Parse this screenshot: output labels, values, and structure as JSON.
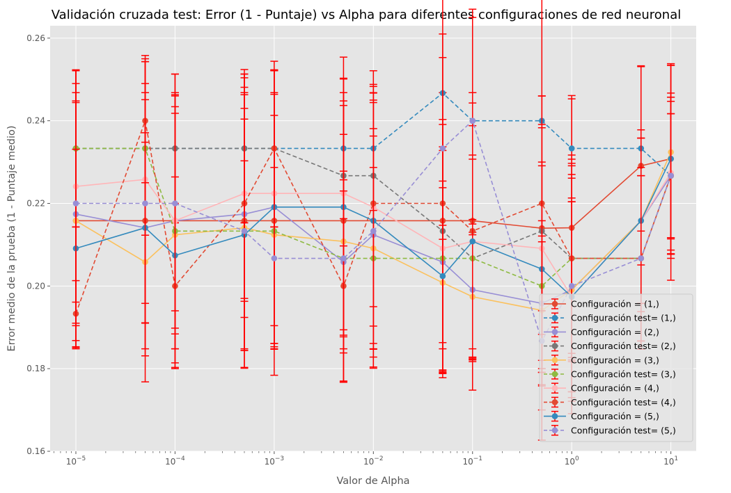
{
  "chart_data": {
    "type": "line",
    "title": "Validación cruzada test: Error (1 - Puntaje) vs Alpha para diferentes configuraciones de red neuronal",
    "xlabel": "Valor de Alpha",
    "ylabel": "Error medio de la prueba (1 - Puntaje medio)",
    "xscale": "log",
    "xlim": [
      5.5e-06,
      18
    ],
    "ylim": [
      0.16,
      0.263
    ],
    "x_ticks": [
      {
        "base": "10",
        "exp": "−5",
        "value": 1e-05
      },
      {
        "base": "10",
        "exp": "−4",
        "value": 0.0001
      },
      {
        "base": "10",
        "exp": "−3",
        "value": 0.001
      },
      {
        "base": "10",
        "exp": "−2",
        "value": 0.01
      },
      {
        "base": "10",
        "exp": "−1",
        "value": 0.1
      },
      {
        "base": "10",
        "exp": "0",
        "value": 1
      },
      {
        "base": "10",
        "exp": "1",
        "value": 10
      }
    ],
    "y_ticks": [
      "0.16",
      "0.18",
      "0.20",
      "0.22",
      "0.24",
      "0.26"
    ],
    "grid": true,
    "legend_position": "lower-right",
    "error_bar_color": "#ff0000",
    "x": [
      1e-05,
      5e-05,
      0.0001,
      0.0005,
      0.001,
      0.005,
      0.01,
      0.05,
      0.1,
      0.5,
      1,
      5,
      10
    ],
    "series": [
      {
        "name": "Configuración = (1,)",
        "color": "#e24a33",
        "dashed": false,
        "values": [
          0.2158,
          0.2158,
          0.2158,
          0.2158,
          0.2158,
          0.2158,
          0.2158,
          0.2158,
          0.2158,
          0.214,
          0.2141,
          0.2291,
          0.2308
        ],
        "errors": [
          0.031,
          0.031,
          0.031,
          0.031,
          0.031,
          0.031,
          0.031,
          0.031,
          0.031,
          0.032,
          0.032,
          0.024,
          0.023
        ]
      },
      {
        "name": "Configuración test= (1,)",
        "color": "#348abd",
        "dashed": true,
        "values": [
          0.2333,
          0.2333,
          0.2333,
          0.2333,
          0.2333,
          0.2333,
          0.2333,
          0.2467,
          0.24,
          0.24,
          0.2333,
          0.2333,
          0.2267
        ],
        "errors": [
          0.019,
          0.021,
          0.018,
          0.018,
          0.019,
          0.017,
          0.015,
          0.032,
          0.027,
          0.06,
          0.012,
          0.02,
          0.019
        ]
      },
      {
        "name": "Configuración = (2,)",
        "color": "#988ed5",
        "dashed": false,
        "values": [
          0.2174,
          0.2141,
          0.2158,
          0.2174,
          0.2191,
          0.2058,
          0.2124,
          0.2058,
          0.1991,
          0.1958,
          0.1991,
          0.2158,
          0.2267
        ],
        "errors": [
          0.027,
          0.031,
          0.031,
          0.033,
          0.033,
          0.022,
          0.032,
          0.027,
          0.017,
          0.02,
          0.03,
          0.022,
          0.019
        ]
      },
      {
        "name": "Configuración test= (2,)",
        "color": "#777777",
        "dashed": true,
        "values": [
          0.2333,
          0.2333,
          0.2333,
          0.2333,
          0.2333,
          0.2267,
          0.2267,
          0.2133,
          0.2067,
          0.2133,
          0.2067,
          0.2067,
          0.2267
        ],
        "errors": [
          0.019,
          0.021,
          0.018,
          0.018,
          0.019,
          0.017,
          0.02,
          0.027,
          0.024,
          0.025,
          0.023,
          0.02,
          0.015
        ]
      },
      {
        "name": "Configuración = (3,)",
        "color": "#fbc15e",
        "dashed": false,
        "values": [
          0.2158,
          0.2058,
          0.2124,
          0.2141,
          0.2124,
          0.2108,
          0.2091,
          0.2008,
          0.1974,
          0.1941,
          0.1991,
          0.2158,
          0.2324
        ],
        "errors": [
          0.029,
          0.029,
          0.031,
          0.034,
          0.034,
          0.034,
          0.029,
          0.023,
          0.015,
          0.018,
          0.027,
          0.02,
          0.021
        ]
      },
      {
        "name": "Configuración test= (3,)",
        "color": "#8eba42",
        "dashed": true,
        "values": [
          0.2333,
          0.2333,
          0.2133,
          0.2133,
          0.2133,
          0.2067,
          0.2067,
          0.2067,
          0.2067,
          0.2,
          0.2067,
          0.2067,
          0.2267
        ],
        "errors": [
          0.019,
          0.021,
          0.033,
          0.033,
          0.028,
          0.03,
          0.022,
          0.027,
          0.025,
          0.03,
          0.025,
          0.022,
          0.015
        ]
      },
      {
        "name": "Configuración = (4,)",
        "color": "#ffb5b8",
        "dashed": false,
        "values": [
          0.2241,
          0.2258,
          0.2158,
          0.2224,
          0.2224,
          0.2224,
          0.2191,
          0.2091,
          0.2108,
          0.2091,
          0.1974,
          0.2158,
          0.2274
        ],
        "errors": [
          0.028,
          0.03,
          0.026,
          0.03,
          0.032,
          0.033,
          0.033,
          0.03,
          0.036,
          0.03,
          0.023,
          0.02,
          0.026
        ]
      },
      {
        "name": "Configuración test= (4,)",
        "color": "#e24a33",
        "dashed": true,
        "values": [
          0.1933,
          0.24,
          0.2,
          0.22,
          0.2333,
          0.2,
          0.22,
          0.22,
          0.2133,
          0.22,
          0.2067,
          0.2067,
          0.2267
        ],
        "errors": [
          0.008,
          0.015,
          0.02,
          0.023,
          0.019,
          0.023,
          0.025,
          0.041,
          0.031,
          0.026,
          0.024,
          0.02,
          0.018
        ]
      },
      {
        "name": "Configuración = (5,)",
        "color": "#348abd",
        "dashed": false,
        "values": [
          0.2091,
          0.2141,
          0.2074,
          0.2124,
          0.2191,
          0.2191,
          0.2158,
          0.2024,
          0.2108,
          0.2041,
          0.1974,
          0.2158,
          0.2308
        ],
        "errors": [
          0.024,
          0.023,
          0.019,
          0.028,
          0.033,
          0.031,
          0.033,
          0.023,
          0.028,
          0.025,
          0.023,
          0.02,
          0.023
        ]
      },
      {
        "name": "Configuración test= (5,)",
        "color": "#988ed5",
        "dashed": true,
        "values": [
          0.22,
          0.22,
          0.22,
          0.2133,
          0.2067,
          0.2067,
          0.2133,
          0.2333,
          0.24,
          0.1867,
          0.2,
          0.2067,
          0.2267
        ],
        "errors": [
          0.029,
          0.029,
          0.026,
          0.017,
          0.022,
          0.019,
          0.023,
          0.022,
          0.025,
          0.024,
          0.027,
          0.02,
          0.02
        ]
      }
    ]
  }
}
